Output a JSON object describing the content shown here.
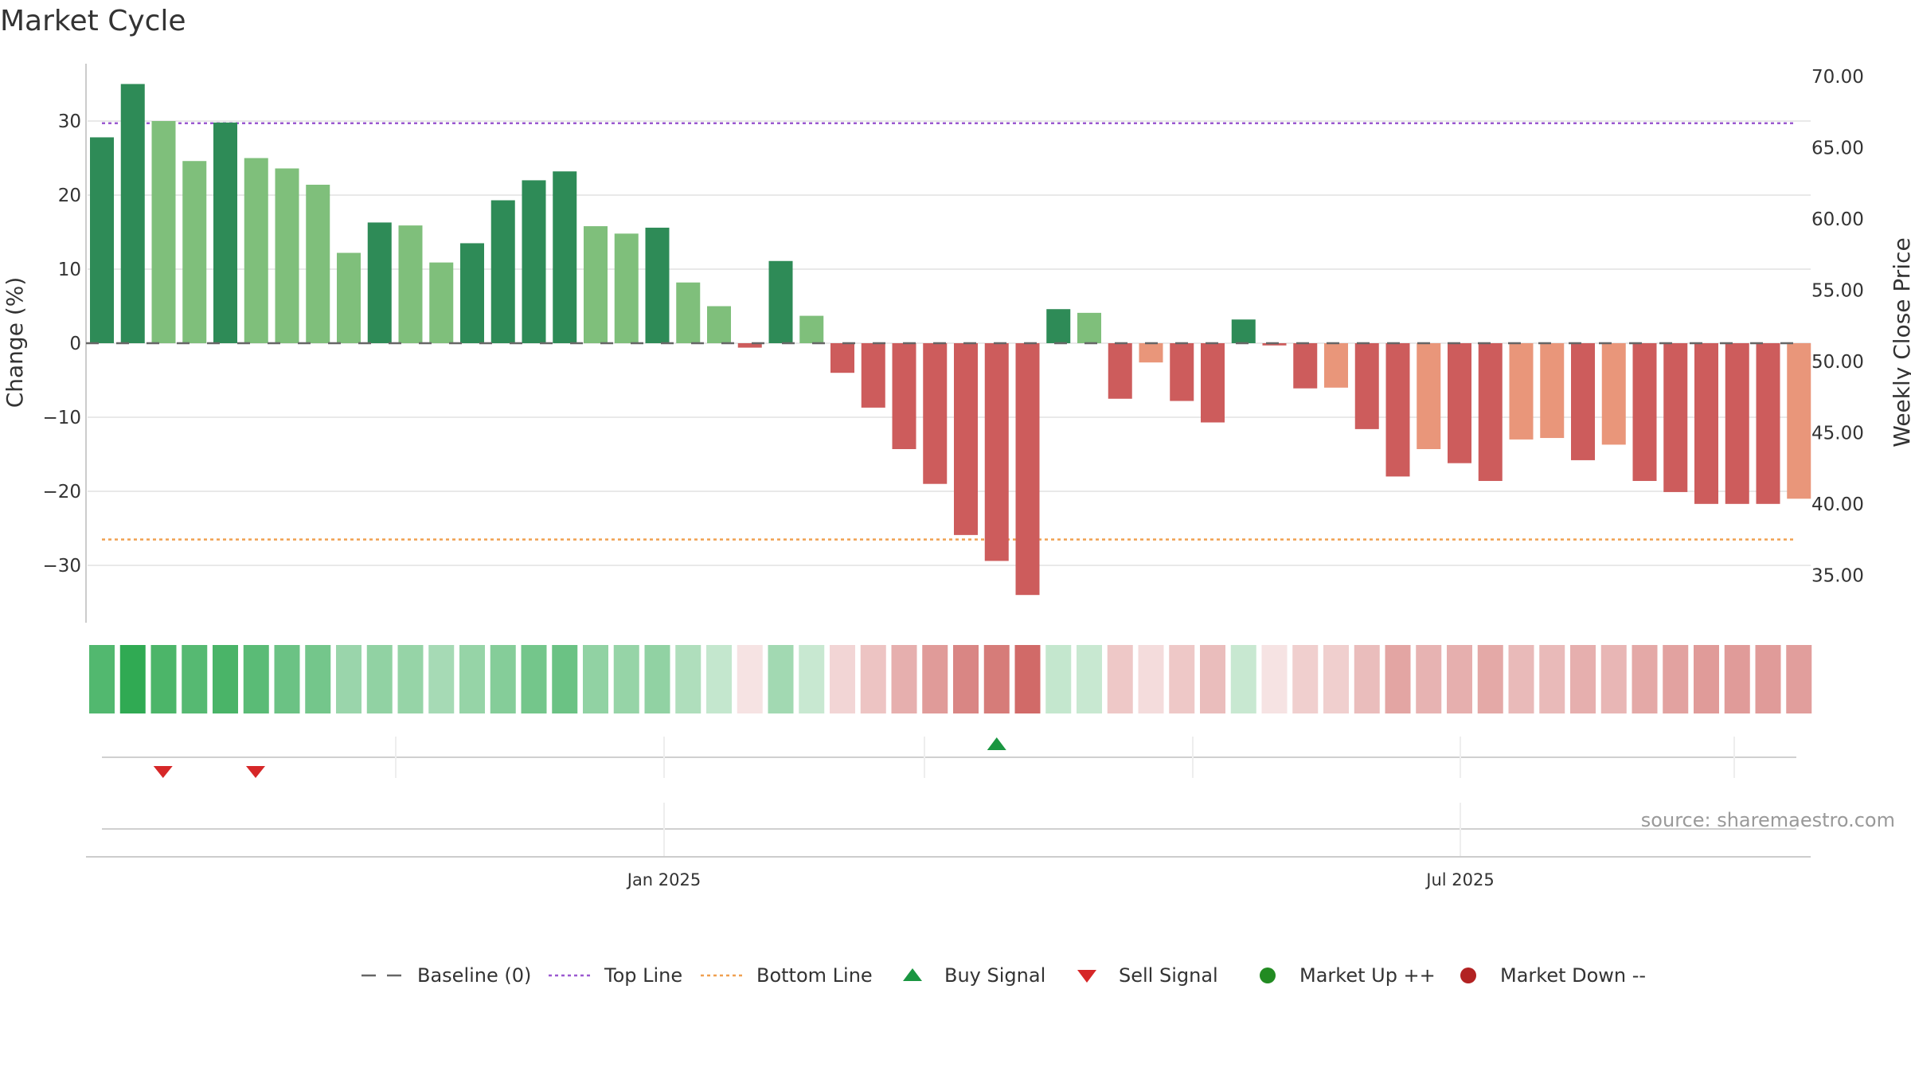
{
  "title": "Market Cycle",
  "source_text": "source: sharemaestro.com",
  "colors": {
    "dark_green": "#2e8b57",
    "light_green": "#7fbf7b",
    "dark_red": "#cd5c5c",
    "light_red": "#e9967a",
    "top_line": "#9b59d0",
    "bottom_line": "#f0a050",
    "baseline": "#666666",
    "buy": "#1a9641",
    "sell": "#d62728",
    "market_up": "#228b22",
    "market_down": "#b22222"
  },
  "chart_data": {
    "type": "bar",
    "title": "Market Cycle",
    "ylabel": "Change (%)",
    "y2label": "Weekly Close Price",
    "ylim": [
      -37.5,
      38.5
    ],
    "y_ticks": [
      30,
      20,
      10,
      0,
      -10,
      -20,
      -30
    ],
    "y_tick_labels": [
      "30",
      "20",
      "10",
      "0",
      "−10",
      "−20",
      "−30"
    ],
    "y2_ticks": [
      "70.00",
      "65.00",
      "60.00",
      "55.00",
      "50.00",
      "45.00",
      "40.00",
      "35.00"
    ],
    "x_tick_labels": [
      "Jan 2025",
      "Jul 2025"
    ],
    "top_line": 29.7,
    "bottom_line": -26.5,
    "baseline": 0,
    "values": [
      27.8,
      35.0,
      30.0,
      24.6,
      29.8,
      25.0,
      23.6,
      21.4,
      12.2,
      16.3,
      15.9,
      10.9,
      13.5,
      19.3,
      22.0,
      23.2,
      15.8,
      14.8,
      15.6,
      8.2,
      5.0,
      -0.6,
      11.1,
      3.7,
      -4.0,
      -8.7,
      -14.3,
      -19.0,
      -25.9,
      -29.4,
      -34.0,
      4.6,
      4.1,
      -7.5,
      -2.6,
      -7.8,
      -10.7,
      3.2,
      -0.3,
      -6.1,
      -6.0,
      -11.6,
      -18.0,
      -14.3,
      -16.2,
      -18.6,
      -13.0,
      -12.8,
      -15.8,
      -13.7,
      -18.6,
      -20.1,
      -21.7,
      -21.7,
      -21.7,
      -21.0
    ],
    "shade": [
      "dark",
      "dark",
      "light",
      "light",
      "dark",
      "light",
      "light",
      "light",
      "light",
      "dark",
      "light",
      "light",
      "dark",
      "dark",
      "dark",
      "dark",
      "light",
      "light",
      "dark",
      "light",
      "light",
      "dark",
      "dark",
      "light",
      "dark",
      "dark",
      "dark",
      "dark",
      "dark",
      "dark",
      "dark",
      "dark",
      "light",
      "dark",
      "light",
      "dark",
      "dark",
      "dark",
      "dark",
      "dark",
      "light",
      "dark",
      "dark",
      "light",
      "dark",
      "dark",
      "light",
      "light",
      "dark",
      "light",
      "dark",
      "dark",
      "dark",
      "dark",
      "dark",
      "light"
    ],
    "heat_strength": [
      0.82,
      0.98,
      0.85,
      0.8,
      0.86,
      0.78,
      0.7,
      0.66,
      0.48,
      0.52,
      0.5,
      0.42,
      0.5,
      0.58,
      0.66,
      0.7,
      0.52,
      0.5,
      0.52,
      0.38,
      0.28,
      0.16,
      0.44,
      0.26,
      0.24,
      0.34,
      0.46,
      0.58,
      0.7,
      0.76,
      0.86,
      0.28,
      0.26,
      0.32,
      0.2,
      0.32,
      0.38,
      0.26,
      0.16,
      0.28,
      0.28,
      0.38,
      0.52,
      0.44,
      0.46,
      0.5,
      0.4,
      0.4,
      0.46,
      0.42,
      0.5,
      0.54,
      0.58,
      0.58,
      0.58,
      0.56
    ],
    "buy_signals": [
      29
    ],
    "sell_signals": [
      1,
      4
    ],
    "legend": [
      {
        "label": "Baseline (0)",
        "symbol": "dash",
        "color": "#666666"
      },
      {
        "label": "Top Line",
        "symbol": "dot",
        "color": "#9b59d0"
      },
      {
        "label": "Bottom Line",
        "symbol": "dot",
        "color": "#f0a050"
      },
      {
        "label": "Buy Signal",
        "symbol": "triangle-up",
        "color": "#1a9641"
      },
      {
        "label": "Sell Signal",
        "symbol": "triangle-down",
        "color": "#d62728"
      },
      {
        "label": "Market Up ++",
        "symbol": "circle",
        "color": "#228b22"
      },
      {
        "label": "Market Down --",
        "symbol": "circle",
        "color": "#b22222"
      }
    ]
  }
}
